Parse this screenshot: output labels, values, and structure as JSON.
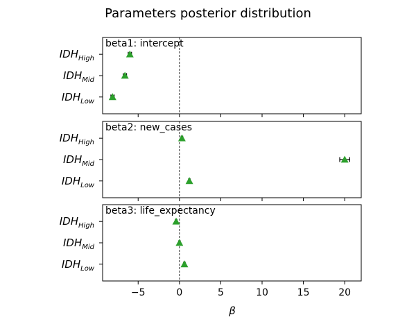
{
  "chart_data": {
    "type": "point",
    "title": "Parameters posterior distribution",
    "xlabel": "β",
    "xlim": [
      -9.3,
      22
    ],
    "xticks": [
      -5,
      0,
      5,
      10,
      15,
      20
    ],
    "xtick_labels": [
      "−5",
      "0",
      "5",
      "10",
      "15",
      "20"
    ],
    "reference_line_x": 0,
    "marker": "triangle",
    "marker_color": "#2ca02c",
    "categories": [
      {
        "base": "IDH",
        "sub": "High"
      },
      {
        "base": "IDH",
        "sub": "Mid"
      },
      {
        "base": "IDH",
        "sub": "Low"
      }
    ],
    "panels": [
      {
        "name": "beta1",
        "label": "beta1: intercept",
        "values": [
          -6.0,
          -6.6,
          -8.1
        ],
        "errors": [
          0.2,
          0.2,
          0.2
        ]
      },
      {
        "name": "beta2",
        "label": "beta2: new_cases",
        "values": [
          0.3,
          20.0,
          1.2
        ],
        "errors": [
          0.1,
          0.6,
          0.1
        ]
      },
      {
        "name": "beta3",
        "label": "beta3: life_expectancy",
        "values": [
          -0.4,
          0.0,
          0.6
        ],
        "errors": [
          0.1,
          0.1,
          0.1
        ]
      }
    ]
  }
}
